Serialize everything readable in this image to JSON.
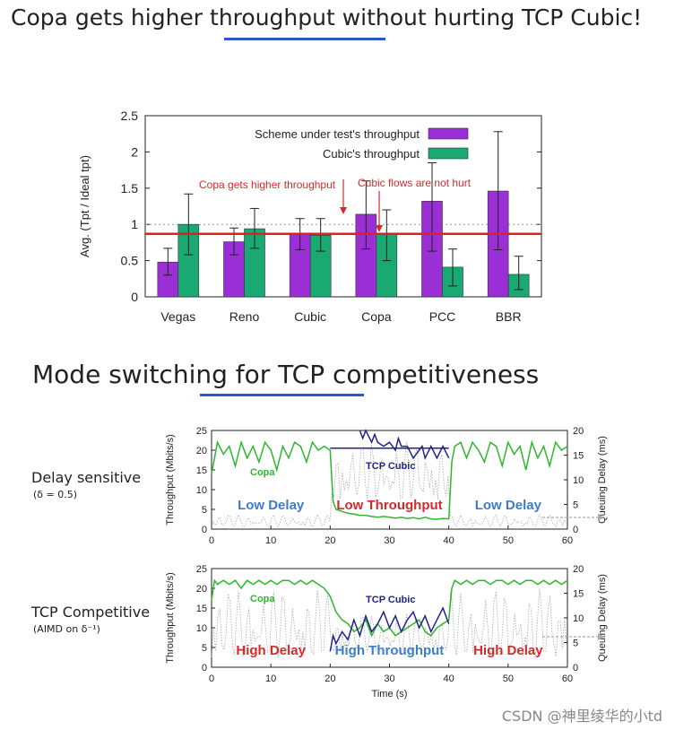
{
  "slide": {
    "title_top": "Copa gets higher throughput without hurting TCP Cubic!",
    "title_bottom": "Mode switching for TCP competitiveness",
    "delay_sensitive_label": "Delay sensitive",
    "delay_sensitive_sub": "(δ = 0.5)",
    "tcp_competitive_label": "TCP Competitive",
    "tcp_competitive_sub": "(AIMD on δ⁻¹)",
    "watermark": "CSDN @神里绫华的小td"
  },
  "colors": {
    "purple": "#9a2fd6",
    "green": "#1aa873",
    "red_line": "#e02020",
    "red_text": "#d42a2a",
    "blue_text": "#3d7cc9",
    "copa_green": "#2fb62f",
    "cubic_navy": "#23238c",
    "underline": "#2b55d3"
  },
  "chart_data": [
    {
      "type": "bar",
      "ylabel": "Avg. (Tpt / Ideal tpt)",
      "xlabel": "",
      "ylim": [
        0,
        2.5
      ],
      "yticks": [
        "0",
        "0.5",
        "1",
        "1.5",
        "2",
        "2.5"
      ],
      "yticks_values": [
        0,
        0.5,
        1,
        1.5,
        2,
        2.5
      ],
      "categories": [
        "Vegas",
        "Reno",
        "Cubic",
        "Copa",
        "PCC",
        "BBR"
      ],
      "series": [
        {
          "name": "Scheme under test's throughput",
          "values": [
            0.48,
            0.76,
            0.86,
            1.14,
            1.32,
            1.46
          ],
          "err_low": [
            0.3,
            0.58,
            0.65,
            0.66,
            0.63,
            0.65
          ],
          "err_high": [
            0.67,
            0.95,
            1.08,
            1.6,
            1.85,
            2.28
          ]
        },
        {
          "name": "Cubic's throughput",
          "values": [
            1.0,
            0.94,
            0.85,
            0.86,
            0.41,
            0.31
          ],
          "err_low": [
            0.58,
            0.67,
            0.63,
            0.5,
            0.15,
            0.1
          ],
          "err_high": [
            1.42,
            1.22,
            1.08,
            1.2,
            0.66,
            0.56
          ]
        }
      ],
      "reference_line": 0.87,
      "dotted_line": 1.0,
      "annotations": [
        "Copa gets higher throughput",
        "Cubic flows are not hurt"
      ],
      "legend": "top-right"
    },
    {
      "type": "line",
      "ylabel": "Throughput (Mbits/s)",
      "y2label": "Queuing Delay (ms)",
      "ylim": [
        0,
        25
      ],
      "y2lim": [
        0,
        20
      ],
      "xlim": [
        0,
        60
      ],
      "xticks": [
        "0",
        "10",
        "20",
        "30",
        "40",
        "50",
        "60"
      ],
      "xticks_values": [
        0,
        10,
        20,
        30,
        40,
        50,
        60
      ],
      "yticks": [
        "0",
        "5",
        "10",
        "15",
        "20",
        "25"
      ],
      "yticks_values": [
        0,
        5,
        10,
        15,
        20,
        25
      ],
      "y2ticks": [
        "0",
        "5",
        "10",
        "15",
        "20"
      ],
      "y2ticks_values": [
        0,
        5,
        10,
        15,
        20
      ],
      "series_labels": [
        "Copa",
        "TCP Cubic"
      ],
      "region_labels": [
        "Low Delay",
        "Low Throughput",
        "Low Delay"
      ],
      "copa": {
        "x": [
          0,
          1,
          2,
          3,
          4,
          5,
          6,
          7,
          8,
          9,
          10,
          11,
          12,
          13,
          14,
          15,
          16,
          17,
          18,
          19,
          20,
          20.5,
          21,
          22,
          23,
          24,
          25,
          26,
          27,
          28,
          29,
          30,
          31,
          32,
          33,
          34,
          35,
          36,
          37,
          38,
          39,
          40,
          40.5,
          41,
          42,
          43,
          44,
          45,
          46,
          47,
          48,
          49,
          50,
          51,
          52,
          53,
          54,
          55,
          56,
          57,
          58,
          59,
          60
        ],
        "y": [
          14,
          22,
          19,
          21,
          16,
          22,
          18,
          21,
          17,
          22,
          20,
          15,
          21,
          18,
          22,
          21,
          17,
          22,
          20,
          21,
          20,
          7,
          5,
          4.5,
          4,
          3.8,
          3.5,
          3.5,
          3.2,
          3,
          3.2,
          3,
          2.8,
          3,
          2.7,
          2.9,
          2.6,
          3,
          2.6,
          2.5,
          2.7,
          2.6,
          17,
          21,
          22,
          18,
          22,
          20,
          17,
          22,
          21,
          16,
          22,
          19,
          21,
          15,
          22,
          18,
          21,
          16,
          22,
          20,
          21
        ]
      },
      "cubic": {
        "x": [
          25,
          25.5,
          26,
          27,
          27.5,
          28,
          29,
          30,
          31,
          31.5,
          32,
          33,
          34,
          35,
          35.5,
          36,
          37,
          38,
          39,
          40
        ],
        "y": [
          25,
          23,
          25,
          22,
          24,
          22,
          21,
          22,
          20,
          23,
          21,
          21,
          18,
          20,
          21,
          18,
          21,
          18,
          21,
          18
        ]
      },
      "cubic_flat": {
        "x": [
          20,
          40
        ],
        "y": [
          20.5,
          20.5
        ]
      }
    },
    {
      "type": "line",
      "xlabel": "Time (s)",
      "ylabel": "Throughput (Mbits/s)",
      "y2label": "Queuing Delay (ms)",
      "ylim": [
        0,
        25
      ],
      "y2lim": [
        0,
        20
      ],
      "xlim": [
        0,
        60
      ],
      "xticks": [
        "0",
        "10",
        "20",
        "30",
        "40",
        "50",
        "60"
      ],
      "xticks_values": [
        0,
        10,
        20,
        30,
        40,
        50,
        60
      ],
      "yticks": [
        "0",
        "5",
        "10",
        "15",
        "20",
        "25"
      ],
      "yticks_values": [
        0,
        5,
        10,
        15,
        20,
        25
      ],
      "y2ticks": [
        "0",
        "5",
        "10",
        "15",
        "20"
      ],
      "y2ticks_values": [
        0,
        5,
        10,
        15,
        20
      ],
      "series_labels": [
        "Copa",
        "TCP Cubic"
      ],
      "region_labels": [
        "High Delay",
        "High Throughput",
        "High Delay"
      ],
      "copa": {
        "x": [
          0,
          0.5,
          1,
          2,
          3,
          4,
          5,
          6,
          7,
          8,
          9,
          10,
          11,
          12,
          13,
          14,
          15,
          16,
          17,
          18,
          19,
          20,
          21,
          22,
          23,
          24,
          25,
          26,
          27,
          28,
          29,
          30,
          31,
          32,
          33,
          34,
          35,
          36,
          37,
          38,
          39,
          40,
          40.5,
          41,
          42,
          43,
          44,
          45,
          46,
          47,
          48,
          49,
          50,
          51,
          52,
          53,
          54,
          55,
          56,
          57,
          58,
          59,
          60
        ],
        "y": [
          17,
          22,
          21,
          22,
          21,
          22,
          20,
          22,
          21,
          22,
          21,
          22,
          21,
          22,
          22,
          21,
          22,
          21,
          22,
          21,
          20,
          18,
          14,
          12,
          11,
          9,
          10,
          12,
          8,
          11,
          9,
          10,
          8,
          9,
          10,
          11,
          12,
          9,
          8,
          10,
          11,
          12,
          20,
          22,
          21,
          22,
          21,
          22,
          22,
          21,
          22,
          22,
          21,
          22,
          21,
          22,
          22,
          21,
          22,
          21,
          22,
          21,
          22
        ]
      },
      "cubic": {
        "x": [
          20,
          20.5,
          21,
          22,
          23,
          24,
          25,
          26,
          27,
          28,
          29,
          30,
          31,
          32,
          33,
          34,
          35,
          36,
          37,
          38,
          39,
          40
        ],
        "y": [
          4,
          8,
          6,
          9,
          7,
          12,
          8,
          13,
          9,
          11,
          14,
          10,
          13,
          9,
          12,
          14,
          10,
          13,
          9,
          12,
          15,
          11
        ]
      }
    }
  ]
}
